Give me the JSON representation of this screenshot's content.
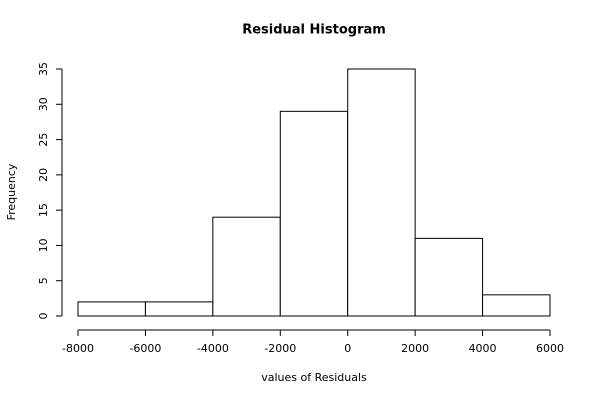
{
  "chart_data": {
    "type": "histogram",
    "title": "Residual Histogram",
    "x_label": "values of Residuals",
    "y_label": "Frequency",
    "bins": [
      -8000,
      -6000,
      -4000,
      -2000,
      0,
      2000,
      4000,
      6000
    ],
    "values": [
      2,
      2,
      14,
      29,
      35,
      11,
      3
    ],
    "color": "#ffffff",
    "xlim": [
      -8000,
      6000
    ],
    "xticks": [
      -8000,
      -6000,
      -4000,
      -2000,
      0,
      2000,
      4000,
      6000
    ],
    "ylim": [
      0,
      35
    ],
    "yticks": [
      0,
      5,
      10,
      15,
      20,
      25,
      30,
      35
    ]
  }
}
